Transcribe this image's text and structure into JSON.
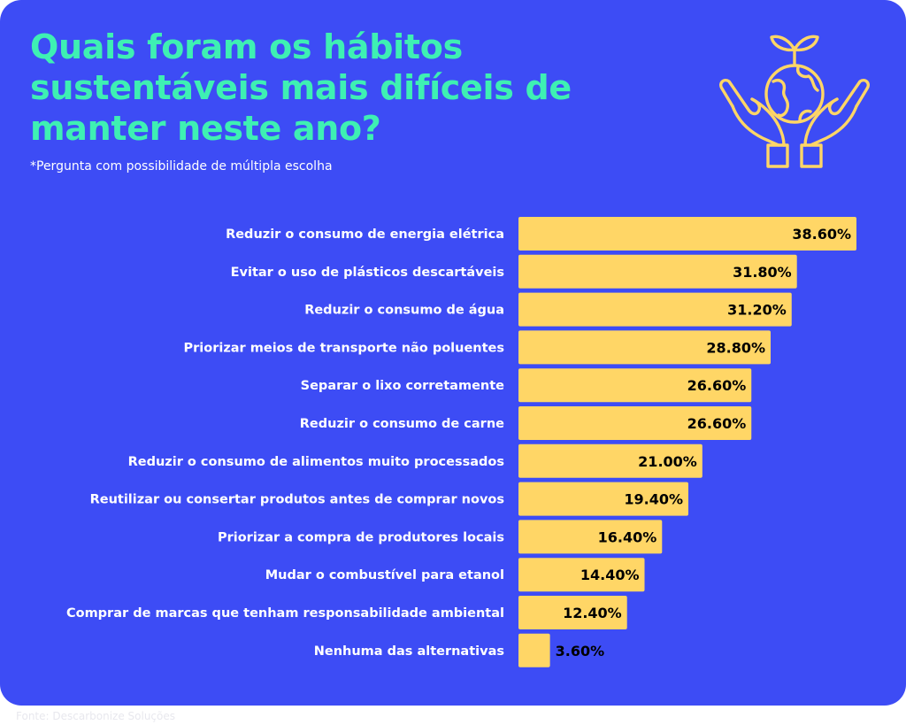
{
  "title": "Quais foram os hábitos sustentáveis mais difíceis de manter neste ano?",
  "subtitle": "*Pergunta com possibilidade de múltipla escolha",
  "source": "Fonte: Descarbonize Soluções",
  "icon": "hands-holding-globe-sprout-icon",
  "colors": {
    "background": "#3d4cf5",
    "title": "#3ef0b3",
    "bar": "#ffd666",
    "category_label": "#ffffff",
    "value_label": "#000000",
    "icon_stroke": "#ffd666"
  },
  "chart_data": {
    "type": "bar",
    "orientation": "horizontal",
    "title": "Quais foram os hábitos sustentáveis mais difíceis de manter neste ano?",
    "subtitle": "*Pergunta com possibilidade de múltipla escolha",
    "xlabel": "",
    "ylabel": "",
    "xlim": [
      0,
      40
    ],
    "grid": false,
    "legend": "none",
    "categories": [
      "Reduzir o consumo de energia elétrica",
      "Evitar o uso de plásticos descartáveis",
      "Reduzir o consumo de água",
      "Priorizar meios de transporte não poluentes",
      "Separar o lixo corretamente",
      "Reduzir o consumo de carne",
      "Reduzir o consumo de alimentos muito processados",
      "Reutilizar ou consertar produtos antes de comprar novos",
      "Priorizar a compra de produtores locais",
      "Mudar o combustível para etanol",
      "Comprar de marcas que tenham responsabilidade ambiental",
      "Nenhuma das alternativas"
    ],
    "values": [
      38.6,
      31.8,
      31.2,
      28.8,
      26.6,
      26.6,
      21.0,
      19.4,
      16.4,
      14.4,
      12.4,
      3.6
    ],
    "value_labels": [
      "38.60%",
      "31.80%",
      "31.20%",
      "28.80%",
      "26.60%",
      "26.60%",
      "21.00%",
      "19.40%",
      "16.40%",
      "14.40%",
      "12.40%",
      "3.60%"
    ]
  }
}
